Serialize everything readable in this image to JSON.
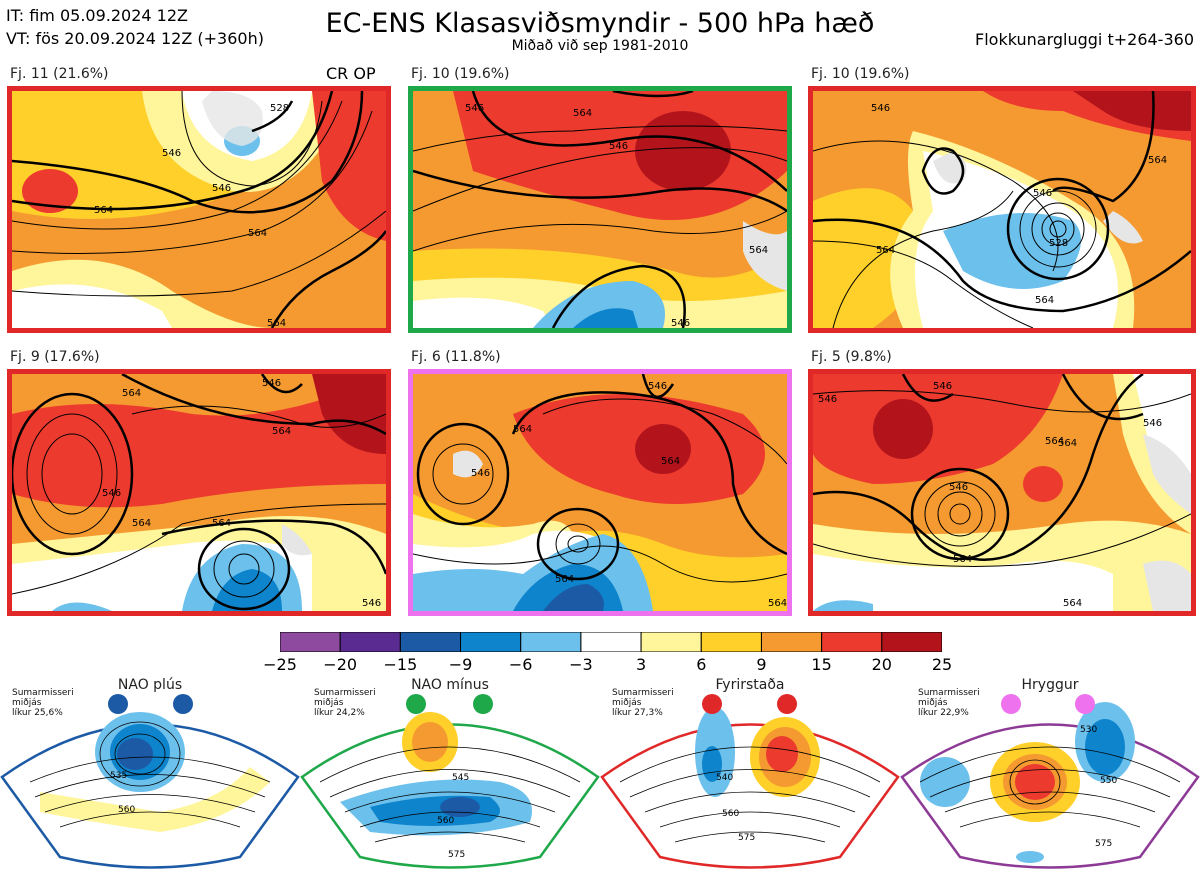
{
  "header": {
    "it_line": "IT: fim 05.09.2024 12Z",
    "vt_line": "VT: fös 20.09.2024 12Z  (+360h)",
    "title": "EC-ENS Klasasviðsmyndir - 500 hPa hæð",
    "subtitle": "Miðað við sep 1981-2010",
    "window": "Flokkunargluggi t+264-360",
    "cr_op": "CR OP"
  },
  "panels": [
    {
      "label": "Fj. 11 (21.6%)",
      "border": "#e02828"
    },
    {
      "label": "Fj. 10 (19.6%)",
      "border": "#1fa84a"
    },
    {
      "label": "Fj. 10 (19.6%)",
      "border": "#e02828"
    },
    {
      "label": "Fj. 9 (17.6%)",
      "border": "#e02828"
    },
    {
      "label": "Fj. 6 (11.8%)",
      "border": "#ee72ee"
    },
    {
      "label": "Fj. 5 (9.8%)",
      "border": "#e02828"
    }
  ],
  "contour_labels": {
    "p1": [
      "546",
      "528",
      "546",
      "564",
      "564",
      "564"
    ],
    "p2": [
      "546",
      "564",
      "546",
      "564",
      "546"
    ],
    "p3": [
      "546",
      "546",
      "528",
      "564",
      "564",
      "564"
    ],
    "p4": [
      "564",
      "546",
      "546",
      "564",
      "564",
      "564",
      "546"
    ],
    "p5": [
      "546",
      "564",
      "546",
      "564",
      "564",
      "564"
    ],
    "p6": [
      "546",
      "546",
      "564",
      "546",
      "546",
      "564",
      "564",
      "564"
    ]
  },
  "colorbar": {
    "labels": [
      "−25",
      "−20",
      "−15",
      "−9",
      "−6",
      "−3",
      "3",
      "6",
      "9",
      "15",
      "20",
      "25"
    ],
    "colors": [
      "#8d4a9e",
      "#5a2c92",
      "#1d5aa6",
      "#0e84cc",
      "#6cc0ec",
      "#ffffff",
      "#fff59a",
      "#ffd02a",
      "#f59a30",
      "#ec3a2e",
      "#b3141c"
    ]
  },
  "regimes": [
    {
      "title": "NAO plús",
      "season": "Sumarmisseri",
      "metric": "miðjás",
      "prob": "líkur 25,6%",
      "border": "#1d5aa6",
      "dot": "#1d5aa6",
      "contours": [
        "535",
        "560"
      ]
    },
    {
      "title": "NAO mínus",
      "season": "Sumarmisseri",
      "metric": "miðjás",
      "prob": "líkur 24,2%",
      "border": "#1fa84a",
      "dot": "#1fa84a",
      "contours": [
        "545",
        "560",
        "575"
      ]
    },
    {
      "title": "Fyrirstaða",
      "season": "Sumarmisseri",
      "metric": "miðjás",
      "prob": "líkur 27,3%",
      "border": "#e02828",
      "dot": "#e02828",
      "contours": [
        "540",
        "560",
        "575"
      ]
    },
    {
      "title": "Hryggur",
      "season": "Sumarmisseri",
      "metric": "miðjás",
      "prob": "líkur 22,9%",
      "border": "#8d3a96",
      "dot": "#ee72ee",
      "contours": [
        "530",
        "550",
        "575"
      ]
    }
  ]
}
